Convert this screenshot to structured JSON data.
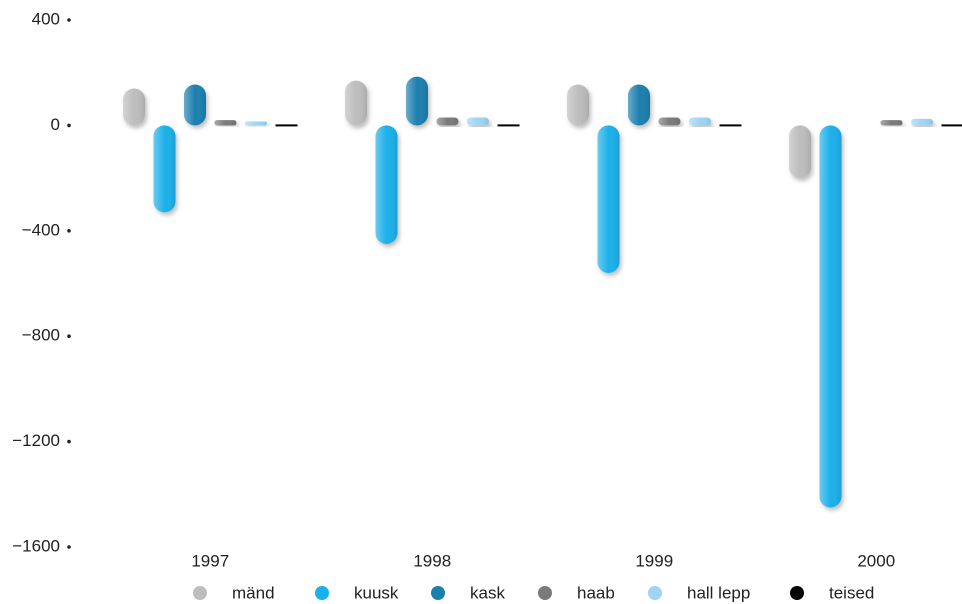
{
  "chart_data": {
    "type": "bar",
    "categories": [
      "1997",
      "1998",
      "1999",
      "2000"
    ],
    "series": [
      {
        "name": "mänd",
        "color": "#bdbdbd",
        "values": [
          140,
          170,
          155,
          -200
        ]
      },
      {
        "name": "kuusk",
        "color": "#1ab0ea",
        "values": [
          -330,
          -450,
          -560,
          -1450
        ]
      },
      {
        "name": "kask",
        "color": "#1a7fae",
        "values": [
          155,
          185,
          155,
          0
        ]
      },
      {
        "name": "haab",
        "color": "#7a7a7a",
        "values": [
          20,
          30,
          30,
          20
        ]
      },
      {
        "name": "hall lepp",
        "color": "#9fd4f4",
        "values": [
          15,
          30,
          30,
          25
        ]
      },
      {
        "name": "teised",
        "color": "#000000",
        "values": [
          5,
          5,
          5,
          0
        ]
      }
    ],
    "ylim": [
      -1600,
      400
    ],
    "yticks": [
      400,
      0,
      {
        "value": -400,
        "label": "−400"
      },
      {
        "value": -800,
        "label": "−800"
      },
      {
        "value": -1200,
        "label": "−1200"
      },
      {
        "value": -1600,
        "label": "−1600"
      }
    ],
    "grid": false
  }
}
